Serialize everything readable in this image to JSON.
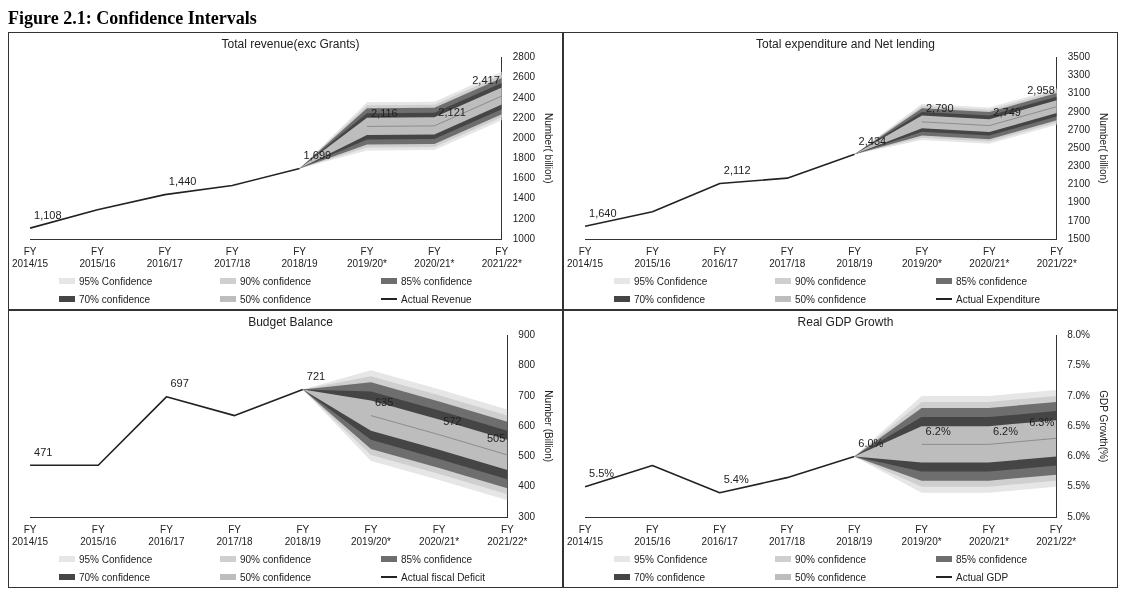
{
  "chart_data": [
    {
      "type": "line",
      "title": "Total revenue(exc Grants)",
      "ylabel": "Number( billion)",
      "annotations": [
        "Figure 2.1: Confidence Intervals"
      ],
      "categories": [
        "FY 2014/15",
        "FY 2015/16",
        "FY 2016/17",
        "FY 2017/18",
        "FY 2018/19",
        "FY 2019/20*",
        "FY 2020/21*",
        "FY 2021/22*"
      ],
      "ylim": [
        1000,
        2800
      ],
      "yticks": [
        1000,
        1200,
        1400,
        1600,
        1800,
        2000,
        2200,
        2400,
        2600,
        2800
      ],
      "legend": "bottom",
      "series": [
        {
          "name": "95% Confidence",
          "type": "area",
          "color": "#e6e6e6",
          "values": [
            null,
            null,
            null,
            null,
            null,
            null,
            null,
            null
          ],
          "lower": [
            null,
            null,
            null,
            null,
            1699,
            1876,
            1881,
            2177
          ],
          "upper": [
            null,
            null,
            null,
            null,
            1699,
            2356,
            2361,
            2657
          ]
        },
        {
          "name": "90% confidence",
          "type": "area",
          "color": "#cfcfcf",
          "values": [
            null,
            null,
            null,
            null,
            null,
            null,
            null,
            null
          ],
          "lower": [
            null,
            null,
            null,
            null,
            1699,
            1906,
            1911,
            2207
          ],
          "upper": [
            null,
            null,
            null,
            null,
            1699,
            2326,
            2331,
            2627
          ]
        },
        {
          "name": "85% confidence",
          "type": "area",
          "color": "#6e6e6e",
          "values": [
            null,
            null,
            null,
            null,
            null,
            null,
            null,
            null
          ],
          "lower": [
            null,
            null,
            null,
            null,
            1699,
            1936,
            1941,
            2237
          ],
          "upper": [
            null,
            null,
            null,
            null,
            1699,
            2296,
            2301,
            2597
          ]
        },
        {
          "name": "70% confidence",
          "type": "area",
          "color": "#454545",
          "values": [
            null,
            null,
            null,
            null,
            null,
            null,
            null,
            null
          ],
          "lower": [
            null,
            null,
            null,
            null,
            1699,
            1986,
            1991,
            2287
          ],
          "upper": [
            null,
            null,
            null,
            null,
            1699,
            2246,
            2251,
            2547
          ]
        },
        {
          "name": "50% confidence",
          "type": "area",
          "color": "#bdbdbd",
          "values": [
            null,
            null,
            null,
            null,
            null,
            null,
            null,
            null
          ],
          "lower": [
            null,
            null,
            null,
            null,
            1699,
            2031,
            2036,
            2332
          ],
          "upper": [
            null,
            null,
            null,
            null,
            1699,
            2201,
            2206,
            2502
          ]
        },
        {
          "name": "Actual Revenue",
          "type": "line",
          "color": "#222222",
          "values": [
            1108,
            1290,
            1440,
            1530,
            1699,
            null,
            null,
            null
          ],
          "value_labels": [
            "1,108",
            null,
            "1,440",
            null,
            "1,699",
            null,
            null,
            null
          ]
        },
        {
          "type": "line",
          "color": "#8c8c8c",
          "values": [
            null,
            null,
            null,
            null,
            null,
            2116,
            2121,
            2417
          ],
          "value_labels": [
            null,
            null,
            null,
            null,
            null,
            "2,116",
            "2,121",
            "2,417"
          ]
        }
      ]
    },
    {
      "type": "line",
      "title": "Total expenditure and Net lending",
      "ylabel": "Number( billion)",
      "categories": [
        "FY 2014/15",
        "FY 2015/16",
        "FY 2016/17",
        "FY 2017/18",
        "FY 2018/19",
        "FY 2019/20*",
        "FY 2020/21*",
        "FY 2021/22*"
      ],
      "ylim": [
        1500,
        3500
      ],
      "yticks": [
        1500,
        1700,
        1900,
        2100,
        2300,
        2500,
        2700,
        2900,
        3100,
        3300,
        3500
      ],
      "legend": "bottom",
      "series": [
        {
          "name": "95% Confidence",
          "type": "area",
          "color": "#e6e6e6",
          "values": [
            null,
            null,
            null,
            null,
            null,
            null,
            null,
            null
          ],
          "lower": [
            null,
            null,
            null,
            null,
            2434,
            2590,
            2549,
            2758
          ],
          "upper": [
            null,
            null,
            null,
            null,
            2434,
            2990,
            2949,
            3158
          ]
        },
        {
          "name": "90% confidence",
          "type": "area",
          "color": "#cfcfcf",
          "values": [
            null,
            null,
            null,
            null,
            null,
            null,
            null,
            null
          ],
          "lower": [
            null,
            null,
            null,
            null,
            2434,
            2615,
            2574,
            2783
          ],
          "upper": [
            null,
            null,
            null,
            null,
            2434,
            2965,
            2924,
            3133
          ]
        },
        {
          "name": "85% confidence",
          "type": "area",
          "color": "#6e6e6e",
          "values": [
            null,
            null,
            null,
            null,
            null,
            null,
            null,
            null
          ],
          "lower": [
            null,
            null,
            null,
            null,
            2434,
            2640,
            2599,
            2808
          ],
          "upper": [
            null,
            null,
            null,
            null,
            2434,
            2940,
            2899,
            3108
          ]
        },
        {
          "name": "70% confidence",
          "type": "area",
          "color": "#454545",
          "values": [
            null,
            null,
            null,
            null,
            null,
            null,
            null,
            null
          ],
          "lower": [
            null,
            null,
            null,
            null,
            2434,
            2680,
            2639,
            2848
          ],
          "upper": [
            null,
            null,
            null,
            null,
            2434,
            2900,
            2859,
            3068
          ]
        },
        {
          "name": "50% confidence",
          "type": "area",
          "color": "#bdbdbd",
          "values": [
            null,
            null,
            null,
            null,
            null,
            null,
            null,
            null
          ],
          "lower": [
            null,
            null,
            null,
            null,
            2434,
            2720,
            2679,
            2888
          ],
          "upper": [
            null,
            null,
            null,
            null,
            2434,
            2860,
            2819,
            3028
          ]
        },
        {
          "name": "Actual Expenditure",
          "type": "line",
          "color": "#222222",
          "values": [
            1640,
            1800,
            2112,
            2170,
            2434,
            null,
            null,
            null
          ],
          "value_labels": [
            "1,640",
            null,
            "2,112",
            null,
            "2,434",
            null,
            null,
            null
          ]
        },
        {
          "type": "line",
          "color": "#8c8c8c",
          "values": [
            null,
            null,
            null,
            null,
            null,
            2790,
            2749,
            2958
          ],
          "value_labels": [
            null,
            null,
            null,
            null,
            null,
            "2,790",
            "2,749",
            "2,958"
          ]
        }
      ]
    },
    {
      "type": "line",
      "title": "Budget Balance",
      "ylabel": "Number (Billion)",
      "categories": [
        "FY 2014/15",
        "FY 2015/16",
        "FY 2016/17",
        "FY 2017/18",
        "FY 2018/19",
        "FY 2019/20*",
        "FY 2020/21*",
        "FY 2021/22*"
      ],
      "ylim": [
        300,
        900
      ],
      "yticks": [
        300,
        400,
        500,
        600,
        700,
        800,
        900
      ],
      "legend": "bottom",
      "series": [
        {
          "name": "95% Confidence",
          "type": "area",
          "color": "#e6e6e6",
          "values": [
            null,
            null,
            null,
            null,
            null,
            null,
            null,
            null
          ],
          "lower": [
            null,
            null,
            null,
            null,
            721,
            485,
            422,
            355
          ],
          "upper": [
            null,
            null,
            null,
            null,
            721,
            785,
            722,
            655
          ]
        },
        {
          "name": "90% confidence",
          "type": "area",
          "color": "#cfcfcf",
          "values": [
            null,
            null,
            null,
            null,
            null,
            null,
            null,
            null
          ],
          "lower": [
            null,
            null,
            null,
            null,
            721,
            505,
            442,
            375
          ],
          "upper": [
            null,
            null,
            null,
            null,
            721,
            765,
            702,
            635
          ]
        },
        {
          "name": "85% confidence",
          "type": "area",
          "color": "#6e6e6e",
          "values": [
            null,
            null,
            null,
            null,
            null,
            null,
            null,
            null
          ],
          "lower": [
            null,
            null,
            null,
            null,
            721,
            525,
            462,
            395
          ],
          "upper": [
            null,
            null,
            null,
            null,
            721,
            745,
            682,
            615
          ]
        },
        {
          "name": "70% confidence",
          "type": "area",
          "color": "#454545",
          "values": [
            null,
            null,
            null,
            null,
            null,
            null,
            null,
            null
          ],
          "lower": [
            null,
            null,
            null,
            null,
            721,
            555,
            492,
            425
          ],
          "upper": [
            null,
            null,
            null,
            null,
            721,
            715,
            652,
            585
          ]
        },
        {
          "name": "50% confidence",
          "type": "area",
          "color": "#bdbdbd",
          "values": [
            null,
            null,
            null,
            null,
            null,
            null,
            null,
            null
          ],
          "lower": [
            null,
            null,
            null,
            null,
            721,
            585,
            522,
            455
          ],
          "upper": [
            null,
            null,
            null,
            null,
            721,
            685,
            622,
            555
          ]
        },
        {
          "name": "Actual fiscal Deficit",
          "type": "line",
          "color": "#222222",
          "values": [
            471,
            471,
            697,
            635,
            721,
            null,
            null,
            null
          ],
          "value_labels": [
            "471",
            null,
            "697",
            null,
            "721",
            null,
            null,
            null
          ]
        },
        {
          "type": "line",
          "color": "#8c8c8c",
          "values": [
            null,
            null,
            null,
            null,
            null,
            635,
            572,
            505
          ],
          "value_labels": [
            null,
            null,
            null,
            null,
            null,
            "635",
            "572",
            "505"
          ]
        }
      ]
    },
    {
      "type": "line",
      "title": "Real GDP Growth",
      "ylabel": "GDP Growth(%)",
      "categories": [
        "FY 2014/15",
        "FY 2015/16",
        "FY 2016/17",
        "FY 2017/18",
        "FY 2018/19",
        "FY 2019/20*",
        "FY 2020/21*",
        "FY 2021/22*"
      ],
      "ylim": [
        5.0,
        8.0
      ],
      "yticks": [
        {
          "value": 5.0,
          "label": "5.0%"
        },
        {
          "value": 5.5,
          "label": "5.5%"
        },
        {
          "value": 6.0,
          "label": "6.0%"
        },
        {
          "value": 6.5,
          "label": "6.5%"
        },
        {
          "value": 7.0,
          "label": "7.0%"
        },
        {
          "value": 7.5,
          "label": "7.5%"
        },
        {
          "value": 8.0,
          "label": "8.0%"
        }
      ],
      "legend": "bottom",
      "series": [
        {
          "name": "95% Confidence",
          "type": "area",
          "color": "#e6e6e6",
          "values": [
            null,
            null,
            null,
            null,
            null,
            null,
            null,
            null
          ],
          "lower": [
            null,
            null,
            null,
            null,
            6.0,
            5.4,
            5.4,
            5.5
          ],
          "upper": [
            null,
            null,
            null,
            null,
            6.0,
            7.0,
            7.0,
            7.1
          ]
        },
        {
          "name": "90% confidence",
          "type": "area",
          "color": "#cfcfcf",
          "values": [
            null,
            null,
            null,
            null,
            null,
            null,
            null,
            null
          ],
          "lower": [
            null,
            null,
            null,
            null,
            6.0,
            5.5,
            5.5,
            5.6
          ],
          "upper": [
            null,
            null,
            null,
            null,
            6.0,
            6.9,
            6.9,
            7.0
          ]
        },
        {
          "name": "85% confidence",
          "type": "area",
          "color": "#6e6e6e",
          "values": [
            null,
            null,
            null,
            null,
            null,
            null,
            null,
            null
          ],
          "lower": [
            null,
            null,
            null,
            null,
            6.0,
            5.6,
            5.6,
            5.7
          ],
          "upper": [
            null,
            null,
            null,
            null,
            6.0,
            6.8,
            6.8,
            6.9
          ]
        },
        {
          "name": "70% confidence",
          "type": "area",
          "color": "#454545",
          "values": [
            null,
            null,
            null,
            null,
            null,
            null,
            null,
            null
          ],
          "lower": [
            null,
            null,
            null,
            null,
            6.0,
            5.75,
            5.75,
            5.85
          ],
          "upper": [
            null,
            null,
            null,
            null,
            6.0,
            6.65,
            6.65,
            6.75
          ]
        },
        {
          "name": "50% confidence",
          "type": "area",
          "color": "#bdbdbd",
          "values": [
            null,
            null,
            null,
            null,
            null,
            null,
            null,
            null
          ],
          "lower": [
            null,
            null,
            null,
            null,
            6.0,
            5.9,
            5.9,
            6.0
          ],
          "upper": [
            null,
            null,
            null,
            null,
            6.0,
            6.5,
            6.5,
            6.6
          ]
        },
        {
          "name": "Actual GDP",
          "type": "line",
          "color": "#222222",
          "values": [
            5.5,
            5.85,
            5.4,
            5.65,
            6.0,
            null,
            null,
            null
          ],
          "value_labels": [
            "5.5%",
            null,
            "5.4%",
            null,
            "6.0%",
            null,
            null,
            null
          ]
        },
        {
          "type": "line",
          "color": "#8c8c8c",
          "values": [
            null,
            null,
            null,
            null,
            null,
            6.2,
            6.2,
            6.3
          ],
          "value_labels": [
            null,
            null,
            null,
            null,
            null,
            "6.2%",
            "6.2%",
            "6.3%"
          ]
        }
      ]
    }
  ]
}
